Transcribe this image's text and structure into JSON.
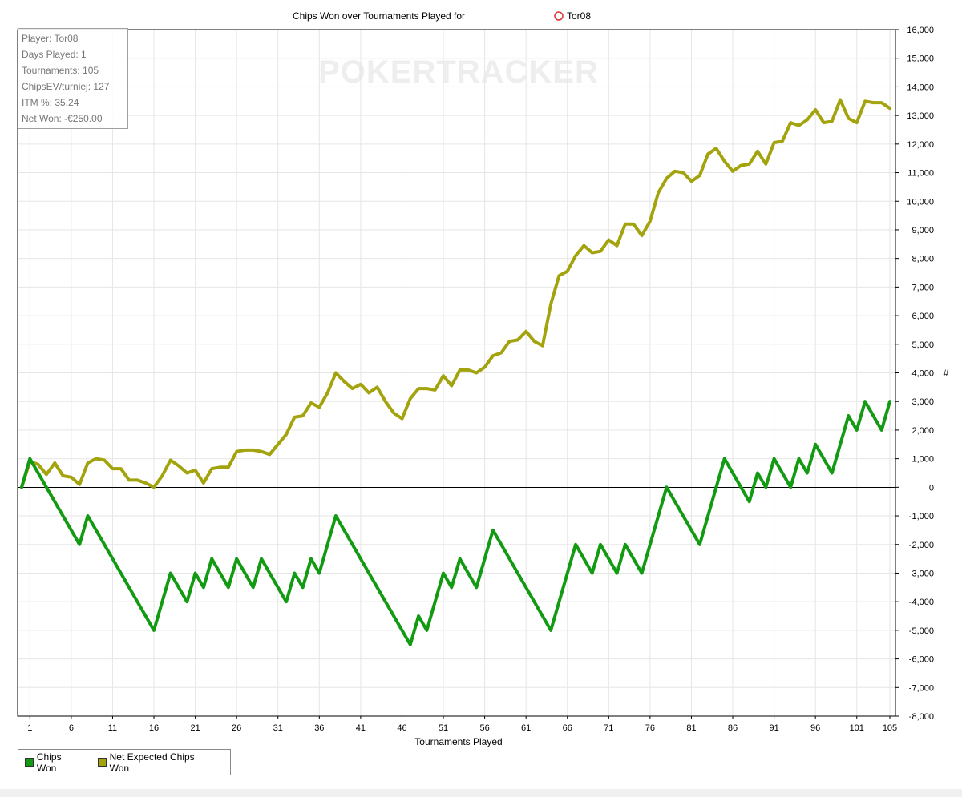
{
  "chart_data": {
    "type": "line",
    "title": "Chips Won over Tournaments Played for",
    "player_name": "Tor08",
    "watermark": "POKERTRACKER",
    "xlabel": "Tournaments Played",
    "ylabel": "#",
    "xlim": [
      0,
      105
    ],
    "ylim": [
      -8000,
      16000
    ],
    "x_ticks": [
      1,
      6,
      11,
      16,
      21,
      26,
      31,
      36,
      41,
      46,
      51,
      56,
      61,
      66,
      71,
      76,
      81,
      86,
      91,
      96,
      101,
      105
    ],
    "y_ticks": [
      {
        "value": 16000,
        "label": "16,000"
      },
      {
        "value": 15000,
        "label": "15,000"
      },
      {
        "value": 14000,
        "label": "14,000"
      },
      {
        "value": 13000,
        "label": "13,000"
      },
      {
        "value": 12000,
        "label": "12,000"
      },
      {
        "value": 11000,
        "label": "11,000"
      },
      {
        "value": 10000,
        "label": "10,000"
      },
      {
        "value": 9000,
        "label": "9,000"
      },
      {
        "value": 8000,
        "label": "8,000"
      },
      {
        "value": 7000,
        "label": "7,000"
      },
      {
        "value": 6000,
        "label": "6,000"
      },
      {
        "value": 5000,
        "label": "5,000"
      },
      {
        "value": 4000,
        "label": "4,000"
      },
      {
        "value": 3000,
        "label": "3,000"
      },
      {
        "value": 2000,
        "label": "2,000"
      },
      {
        "value": 1000,
        "label": "1,000"
      },
      {
        "value": 0,
        "label": "0"
      },
      {
        "value": -1000,
        "label": "-1,000"
      },
      {
        "value": -2000,
        "label": "-2,000"
      },
      {
        "value": -3000,
        "label": "-3,000"
      },
      {
        "value": -4000,
        "label": "-4,000"
      },
      {
        "value": -5000,
        "label": "-5,000"
      },
      {
        "value": -6000,
        "label": "-6,000"
      },
      {
        "value": -7000,
        "label": "-7,000"
      },
      {
        "value": -8000,
        "label": "-8,000"
      }
    ],
    "grid": true,
    "legend_position": "bottom-left",
    "series": [
      {
        "name": "Chips Won",
        "color": "#129b12",
        "points": [
          [
            0,
            0
          ],
          [
            1,
            1000
          ],
          [
            7,
            -2000
          ],
          [
            8,
            -1000
          ],
          [
            16,
            -5000
          ],
          [
            18,
            -3000
          ],
          [
            20,
            -4000
          ],
          [
            21,
            -3000
          ],
          [
            22,
            -3500
          ],
          [
            23,
            -2500
          ],
          [
            25,
            -3500
          ],
          [
            26,
            -2500
          ],
          [
            28,
            -3500
          ],
          [
            29,
            -2500
          ],
          [
            32,
            -4000
          ],
          [
            33,
            -3000
          ],
          [
            34,
            -3500
          ],
          [
            35,
            -2500
          ],
          [
            36,
            -3000
          ],
          [
            38,
            -1000
          ],
          [
            47,
            -5500
          ],
          [
            48,
            -4500
          ],
          [
            49,
            -5000
          ],
          [
            51,
            -3000
          ],
          [
            52,
            -3500
          ],
          [
            53,
            -2500
          ],
          [
            55,
            -3500
          ],
          [
            57,
            -1500
          ],
          [
            64,
            -5000
          ],
          [
            67,
            -2000
          ],
          [
            69,
            -3000
          ],
          [
            70,
            -2000
          ],
          [
            72,
            -3000
          ],
          [
            73,
            -2000
          ],
          [
            75,
            -3000
          ],
          [
            78,
            0
          ],
          [
            82,
            -2000
          ],
          [
            85,
            1000
          ],
          [
            88,
            -500
          ],
          [
            89,
            500
          ],
          [
            90,
            0
          ],
          [
            91,
            1000
          ],
          [
            93,
            0
          ],
          [
            94,
            1000
          ],
          [
            95,
            500
          ],
          [
            96,
            1500
          ],
          [
            98,
            500
          ],
          [
            100,
            2500
          ],
          [
            101,
            2000
          ],
          [
            102,
            3000
          ],
          [
            104,
            2000
          ],
          [
            105,
            3000
          ]
        ]
      },
      {
        "name": "Net Expected Chips Won",
        "color": "#a3a30d",
        "points": [
          [
            0,
            0
          ],
          [
            1,
            900
          ],
          [
            2,
            800
          ],
          [
            3,
            450
          ],
          [
            4,
            850
          ],
          [
            5,
            400
          ],
          [
            6,
            350
          ],
          [
            7,
            100
          ],
          [
            8,
            850
          ],
          [
            9,
            1000
          ],
          [
            10,
            950
          ],
          [
            11,
            650
          ],
          [
            12,
            650
          ],
          [
            13,
            250
          ],
          [
            14,
            250
          ],
          [
            15,
            150
          ],
          [
            16,
            0
          ],
          [
            17,
            400
          ],
          [
            18,
            950
          ],
          [
            19,
            750
          ],
          [
            20,
            500
          ],
          [
            21,
            600
          ],
          [
            22,
            150
          ],
          [
            23,
            650
          ],
          [
            24,
            700
          ],
          [
            25,
            700
          ],
          [
            26,
            1250
          ],
          [
            27,
            1300
          ],
          [
            28,
            1300
          ],
          [
            29,
            1250
          ],
          [
            30,
            1150
          ],
          [
            31,
            1500
          ],
          [
            32,
            1850
          ],
          [
            33,
            2450
          ],
          [
            34,
            2500
          ],
          [
            35,
            2950
          ],
          [
            36,
            2800
          ],
          [
            37,
            3300
          ],
          [
            38,
            4000
          ],
          [
            39,
            3700
          ],
          [
            40,
            3450
          ],
          [
            41,
            3600
          ],
          [
            42,
            3300
          ],
          [
            43,
            3500
          ],
          [
            44,
            3000
          ],
          [
            45,
            2600
          ],
          [
            46,
            2400
          ],
          [
            47,
            3100
          ],
          [
            48,
            3450
          ],
          [
            49,
            3450
          ],
          [
            50,
            3400
          ],
          [
            51,
            3900
          ],
          [
            52,
            3550
          ],
          [
            53,
            4100
          ],
          [
            54,
            4100
          ],
          [
            55,
            4000
          ],
          [
            56,
            4200
          ],
          [
            57,
            4600
          ],
          [
            58,
            4700
          ],
          [
            59,
            5100
          ],
          [
            60,
            5150
          ],
          [
            61,
            5450
          ],
          [
            62,
            5100
          ],
          [
            63,
            4950
          ],
          [
            64,
            6400
          ],
          [
            65,
            7400
          ],
          [
            66,
            7550
          ],
          [
            67,
            8100
          ],
          [
            68,
            8450
          ],
          [
            69,
            8200
          ],
          [
            70,
            8250
          ],
          [
            71,
            8650
          ],
          [
            72,
            8450
          ],
          [
            73,
            9200
          ],
          [
            74,
            9200
          ],
          [
            75,
            8800
          ],
          [
            76,
            9300
          ],
          [
            77,
            10300
          ],
          [
            78,
            10800
          ],
          [
            79,
            11050
          ],
          [
            80,
            11000
          ],
          [
            81,
            10700
          ],
          [
            82,
            10900
          ],
          [
            83,
            11650
          ],
          [
            84,
            11850
          ],
          [
            85,
            11400
          ],
          [
            86,
            11050
          ],
          [
            87,
            11250
          ],
          [
            88,
            11300
          ],
          [
            89,
            11750
          ],
          [
            90,
            11300
          ],
          [
            91,
            12050
          ],
          [
            92,
            12100
          ],
          [
            93,
            12750
          ],
          [
            94,
            12650
          ],
          [
            95,
            12850
          ],
          [
            96,
            13200
          ],
          [
            97,
            12750
          ],
          [
            98,
            12800
          ],
          [
            99,
            13550
          ],
          [
            100,
            12900
          ],
          [
            101,
            12750
          ],
          [
            102,
            13500
          ],
          [
            103,
            13450
          ],
          [
            104,
            13450
          ],
          [
            105,
            13250
          ]
        ]
      }
    ]
  },
  "stats": {
    "player": "Player: Tor08",
    "days_played": "Days Played: 1",
    "tournaments": "Tournaments: 105",
    "chips_ev": "ChipsEV/turniej: 127",
    "itm": "ITM %: 35.24",
    "net_won": "Net Won: -€250.00"
  },
  "legend": {
    "chips_won": "Chips Won",
    "net_expected": "Net Expected Chips Won"
  }
}
